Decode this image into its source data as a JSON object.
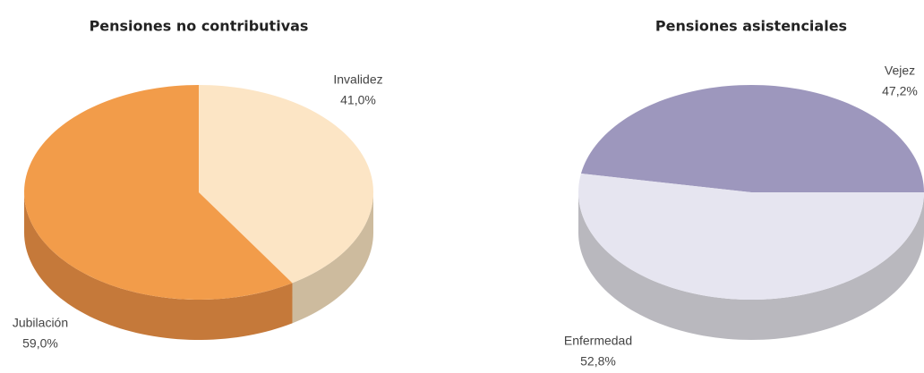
{
  "chart_data": [
    {
      "type": "pie",
      "title": "Pensiones no contributivas",
      "categories": [
        "Invalidez",
        "Jubilación"
      ],
      "values": [
        41.0,
        59.0
      ],
      "value_labels": [
        "41,0%",
        "59,0%"
      ],
      "colors": [
        "#fce5c5",
        "#f29c4a"
      ],
      "side_colors": [
        "#cdbb9e",
        "#c5793a"
      ]
    },
    {
      "type": "pie",
      "title": "Pensiones asistenciales",
      "categories": [
        "Vejez",
        "Enfermedad"
      ],
      "values": [
        47.2,
        52.8
      ],
      "value_labels": [
        "47,2%",
        "52,8%"
      ],
      "colors": [
        "#9d97bd",
        "#e6e5f0"
      ],
      "side_colors": [
        "#8c87a6",
        "#b9b8be"
      ]
    }
  ]
}
